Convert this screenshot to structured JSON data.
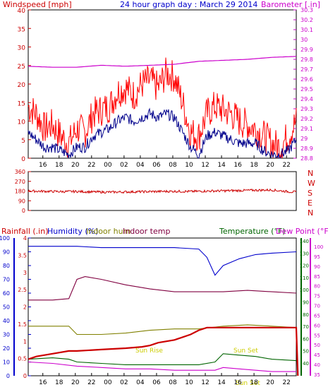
{
  "header": {
    "left_label": "Windspeed [mph]",
    "title": "24 hour graph day : March 29 2014",
    "right_label": "Barometer [.in]"
  },
  "colors": {
    "wind": "#ff0000",
    "wind_avg": "#00008b",
    "barometer": "#cc00cc",
    "direction": "#cc0000",
    "humidity": "#0000cc",
    "indoor_hum": "#808000",
    "indoor_temp": "#800040",
    "temperature": "#006400",
    "dew_point": "#cc00cc",
    "rainfall": "#cc0000",
    "sun": "#cccc00",
    "axis_left": "#cc0000",
    "axis_right": "#cc00cc"
  },
  "time_ticks": [
    "16",
    "18",
    "20",
    "22",
    "00",
    "02",
    "04",
    "06",
    "08",
    "10",
    "12",
    "14",
    "16",
    "18",
    "20",
    "22",
    "00"
  ],
  "direction_labels": [
    "N",
    "W",
    "S",
    "E",
    "N"
  ],
  "bottom_labels": {
    "rainfall": "Rainfall (.in)",
    "humidity": "Humidity (%)",
    "indoor_hum": "Indoor hum",
    "indoor_temp": "Indoor temp",
    "temperature": "Temperature (°F)",
    "dew_point": "Dew Point (°F)"
  },
  "annotations": {
    "sun_rise": "Sun Rise",
    "sun_set": "Sun Set",
    "sun_bottom": "Sun Set"
  },
  "chart_data": [
    {
      "type": "line",
      "name": "wind",
      "x_range_hours": [
        0,
        33
      ],
      "ylim": [
        0,
        40
      ],
      "y_ticks": [
        0,
        5,
        10,
        15,
        20,
        25,
        30,
        35,
        40
      ],
      "series": [
        {
          "name": "Windspeed",
          "x": [
            0,
            1,
            2,
            3,
            4,
            5,
            6,
            7,
            8,
            9,
            10,
            11,
            12,
            13,
            14,
            15,
            16,
            17,
            18,
            19,
            20,
            21,
            22,
            23,
            24,
            25,
            26,
            27,
            28,
            29,
            30,
            31,
            32,
            33
          ],
          "y": [
            14,
            12,
            8,
            9,
            6,
            4,
            8,
            7,
            12,
            13,
            14,
            18,
            19,
            17,
            20,
            21,
            19,
            23,
            22,
            15,
            7,
            6,
            12,
            14,
            13,
            12,
            10,
            9,
            8,
            6,
            4,
            3,
            6,
            10
          ]
        },
        {
          "name": "Avg",
          "x": [
            0,
            1,
            2,
            3,
            4,
            5,
            6,
            7,
            8,
            9,
            10,
            11,
            12,
            13,
            14,
            15,
            16,
            17,
            18,
            19,
            20,
            21,
            22,
            23,
            24,
            25,
            26,
            27,
            28,
            29,
            30,
            31,
            32,
            33
          ],
          "y": [
            7,
            5,
            3,
            3,
            2,
            1,
            3,
            3,
            6,
            7,
            8,
            10,
            11,
            10,
            11,
            12,
            11,
            12,
            11,
            7,
            3,
            1,
            6,
            7,
            6,
            5,
            4,
            4,
            4,
            2,
            1,
            1,
            2,
            5
          ]
        },
        {
          "name": "Barometer",
          "x": [
            0,
            3,
            6,
            9,
            12,
            15,
            18,
            21,
            24,
            27,
            30,
            33
          ],
          "y": [
            29.73,
            29.72,
            29.72,
            29.74,
            29.73,
            29.74,
            29.75,
            29.78,
            29.79,
            29.8,
            29.82,
            29.83
          ]
        }
      ],
      "y2_ticks": [
        28.8,
        28.9,
        29,
        29.1,
        29.2,
        29.3,
        29.4,
        29.5,
        29.6,
        29.7,
        29.8,
        29.9,
        30,
        30.1,
        30.2,
        30.3
      ],
      "y2lim": [
        28.8,
        30.3
      ]
    },
    {
      "type": "line",
      "name": "direction",
      "ylim": [
        0,
        360
      ],
      "y_ticks": [
        0,
        90,
        180,
        270,
        360
      ],
      "series": [
        {
          "name": "Wind direction",
          "x": [
            0,
            2,
            4,
            6,
            8,
            10,
            12,
            14,
            16,
            18,
            20,
            22,
            24,
            26,
            28,
            30,
            32,
            33
          ],
          "y": [
            180,
            178,
            175,
            176,
            172,
            170,
            172,
            174,
            176,
            178,
            176,
            180,
            182,
            185,
            188,
            190,
            175,
            170
          ]
        }
      ]
    },
    {
      "type": "line",
      "name": "climate",
      "ylim": [
        0,
        100
      ],
      "y_ticks": [
        0,
        10,
        20,
        30,
        40,
        50,
        60,
        70,
        80,
        90,
        100
      ],
      "rain_ticks": [
        0,
        0.5,
        1,
        1.5,
        2,
        2.5,
        3,
        3.5,
        4
      ],
      "temp_ticks": [
        40,
        50,
        60,
        70,
        80,
        90,
        100,
        110,
        120,
        130,
        140
      ],
      "dew_ticks": [
        35,
        40,
        45,
        50,
        55,
        60,
        65,
        70,
        75,
        80,
        85,
        90,
        95,
        100
      ],
      "series": [
        {
          "name": "Humidity",
          "x": [
            0,
            3,
            6,
            9,
            12,
            15,
            18,
            21,
            22,
            23,
            24,
            26,
            28,
            30,
            33
          ],
          "y": [
            94,
            94,
            94,
            93,
            93,
            93,
            93,
            92,
            86,
            73,
            80,
            85,
            88,
            89,
            90
          ]
        },
        {
          "name": "Indoor temp",
          "x": [
            0,
            3,
            5,
            6,
            7,
            9,
            12,
            15,
            18,
            21,
            24,
            27,
            30,
            33
          ],
          "y": [
            55,
            55,
            56,
            70,
            72,
            70,
            66,
            63,
            61,
            61,
            61,
            62,
            61,
            60
          ]
        },
        {
          "name": "Indoor hum",
          "x": [
            0,
            3,
            5,
            6,
            9,
            12,
            15,
            18,
            21,
            24,
            27,
            30,
            33
          ],
          "y": [
            36,
            36,
            36,
            30,
            30,
            31,
            33,
            34,
            34,
            36,
            37,
            36,
            35
          ]
        },
        {
          "name": "Temperature",
          "x": [
            0,
            3,
            5,
            6,
            9,
            12,
            15,
            18,
            21,
            23,
            24,
            26,
            28,
            30,
            33
          ],
          "y": [
            12,
            13,
            12,
            10,
            9,
            8,
            8,
            8,
            8,
            10,
            16,
            15,
            14,
            12,
            11
          ]
        },
        {
          "name": "Dew Point",
          "x": [
            0,
            3,
            6,
            9,
            12,
            15,
            18,
            21,
            23,
            24,
            26,
            28,
            30,
            33
          ],
          "y": [
            10,
            9,
            7,
            6,
            5,
            5,
            4,
            4,
            4,
            6,
            5,
            4,
            3,
            3
          ]
        },
        {
          "name": "Rainfall",
          "x": [
            0,
            1,
            3,
            5,
            6,
            9,
            12,
            14,
            15,
            16,
            18,
            20,
            21,
            22,
            24,
            27,
            30,
            33,
            33.2
          ],
          "y": [
            12,
            14,
            16,
            18,
            18,
            19,
            20,
            21,
            22,
            24,
            26,
            30,
            33,
            35,
            35,
            35,
            35,
            35,
            0
          ]
        }
      ]
    }
  ]
}
